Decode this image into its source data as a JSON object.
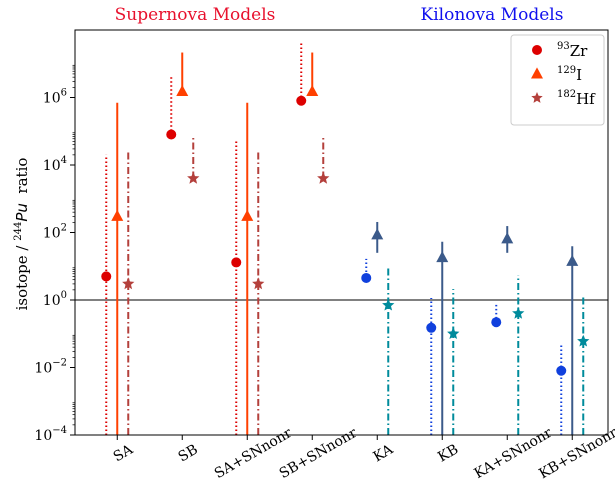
{
  "chart_data": {
    "type": "scatter",
    "group_titles": [
      {
        "text": "Supernova Models",
        "color": "#e8112d"
      },
      {
        "text": "Kilonova Models",
        "color": "#1010ee"
      }
    ],
    "ylabel": {
      "prefix": "isotope / ",
      "sup": "244",
      "italic": "Pu",
      "suffix": "  ratio"
    },
    "yscale": "log",
    "ylim": [
      0.0001,
      100000000
    ],
    "yticks": [
      {
        "base": "10",
        "exp": "−4",
        "value": 0.0001
      },
      {
        "base": "10",
        "exp": "−2",
        "value": 0.01
      },
      {
        "base": "10",
        "exp": "0",
        "value": 1
      },
      {
        "base": "10",
        "exp": "2",
        "value": 100
      },
      {
        "base": "10",
        "exp": "4",
        "value": 10000
      },
      {
        "base": "10",
        "exp": "6",
        "value": 1000000
      }
    ],
    "reference_line": 1,
    "categories": [
      "SA",
      "SB",
      "SA+SNnonr",
      "SB+SNnonr",
      "KA",
      "KB",
      "KA+SNnonr",
      "KB+SNnonr"
    ],
    "legend": {
      "position": "top-right"
    },
    "series": [
      {
        "name": "Zr",
        "sup": "93",
        "marker": "circle",
        "colors": [
          "#dd0000",
          "#dd0000",
          "#dd0000",
          "#dd0000",
          "#1040dd",
          "#1040dd",
          "#1040dd",
          "#1040dd"
        ],
        "linestyle": "dotted",
        "values": [
          5,
          80000,
          13,
          800000,
          4.5,
          0.15,
          0.22,
          0.008
        ],
        "err_low": [
          5,
          1000,
          13,
          10000,
          0.6,
          0.15,
          0.003,
          0.008
        ],
        "err_high": [
          20000,
          4000000,
          50000,
          40000000,
          12,
          1,
          0.6,
          0.04
        ]
      },
      {
        "name": "I",
        "sup": "129",
        "marker": "triangle",
        "colors": [
          "#ff4000",
          "#ff4000",
          "#ff4000",
          "#ff4000",
          "#3b5a8a",
          "#3b5a8a",
          "#3b5a8a",
          "#3b5a8a"
        ],
        "linestyle": "solid",
        "values": [
          300,
          1500000,
          300,
          1500000,
          85,
          18,
          65,
          14
        ],
        "err_low": [
          300,
          20000,
          300,
          3500,
          60,
          18,
          40,
          14
        ],
        "err_high": [
          700000,
          20000000,
          700000,
          20000000,
          120,
          35,
          90,
          25
        ]
      },
      {
        "name": "Hf",
        "sup": "182",
        "marker": "star",
        "colors": [
          "#b4403c",
          "#b4403c",
          "#b4403c",
          "#b4403c",
          "#008b9c",
          "#008b9c",
          "#008b9c",
          "#008b9c"
        ],
        "linestyle": "dashdot",
        "values": [
          3,
          4000,
          3,
          4000,
          0.7,
          0.1,
          0.4,
          0.06
        ],
        "err_low": [
          3,
          8,
          3,
          8,
          0.7,
          0.1,
          0.4,
          0.06
        ],
        "err_high": [
          25000,
          70000,
          25000,
          70000,
          8,
          2,
          5,
          1.3
        ]
      }
    ]
  }
}
